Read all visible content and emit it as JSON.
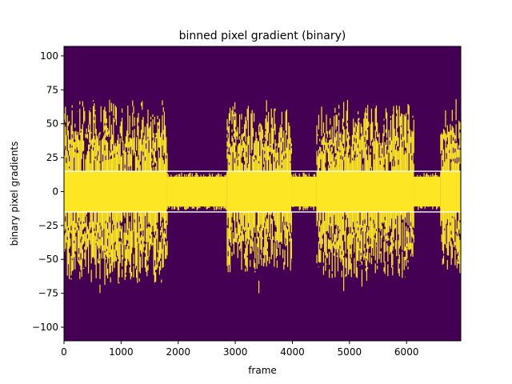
{
  "chart_data": {
    "type": "heatmap",
    "title": "binned pixel gradient (binary)",
    "xlabel": "frame",
    "ylabel": "binary pixel gradients",
    "xlim": [
      0,
      6950
    ],
    "ylim": [
      -110,
      107
    ],
    "xticks": [
      0,
      1000,
      2000,
      3000,
      4000,
      5000,
      6000
    ],
    "yticks": [
      -100,
      -75,
      -50,
      -25,
      0,
      25,
      50,
      75,
      100
    ],
    "colors": {
      "background": "#440154",
      "foreground": "#fde725",
      "threshold_line": "#ffffff"
    },
    "threshold_lines": [
      15,
      -15
    ],
    "segments": [
      {
        "x_start": 0,
        "x_end": 1800,
        "activity": "high",
        "core_half_height": 68,
        "max_extent": 85
      },
      {
        "x_start": 1800,
        "x_end": 2850,
        "activity": "low",
        "core_half_height": 11,
        "max_extent": 14
      },
      {
        "x_start": 2850,
        "x_end": 3980,
        "activity": "high",
        "core_half_height": 62,
        "max_extent": 78
      },
      {
        "x_start": 3980,
        "x_end": 4420,
        "activity": "low",
        "core_half_height": 11,
        "max_extent": 14
      },
      {
        "x_start": 4420,
        "x_end": 6130,
        "activity": "high",
        "core_half_height": 64,
        "max_extent": 88
      },
      {
        "x_start": 6130,
        "x_end": 6590,
        "activity": "low",
        "core_half_height": 11,
        "max_extent": 14
      },
      {
        "x_start": 6590,
        "x_end": 6950,
        "activity": "high",
        "core_half_height": 65,
        "max_extent": 78
      }
    ]
  }
}
